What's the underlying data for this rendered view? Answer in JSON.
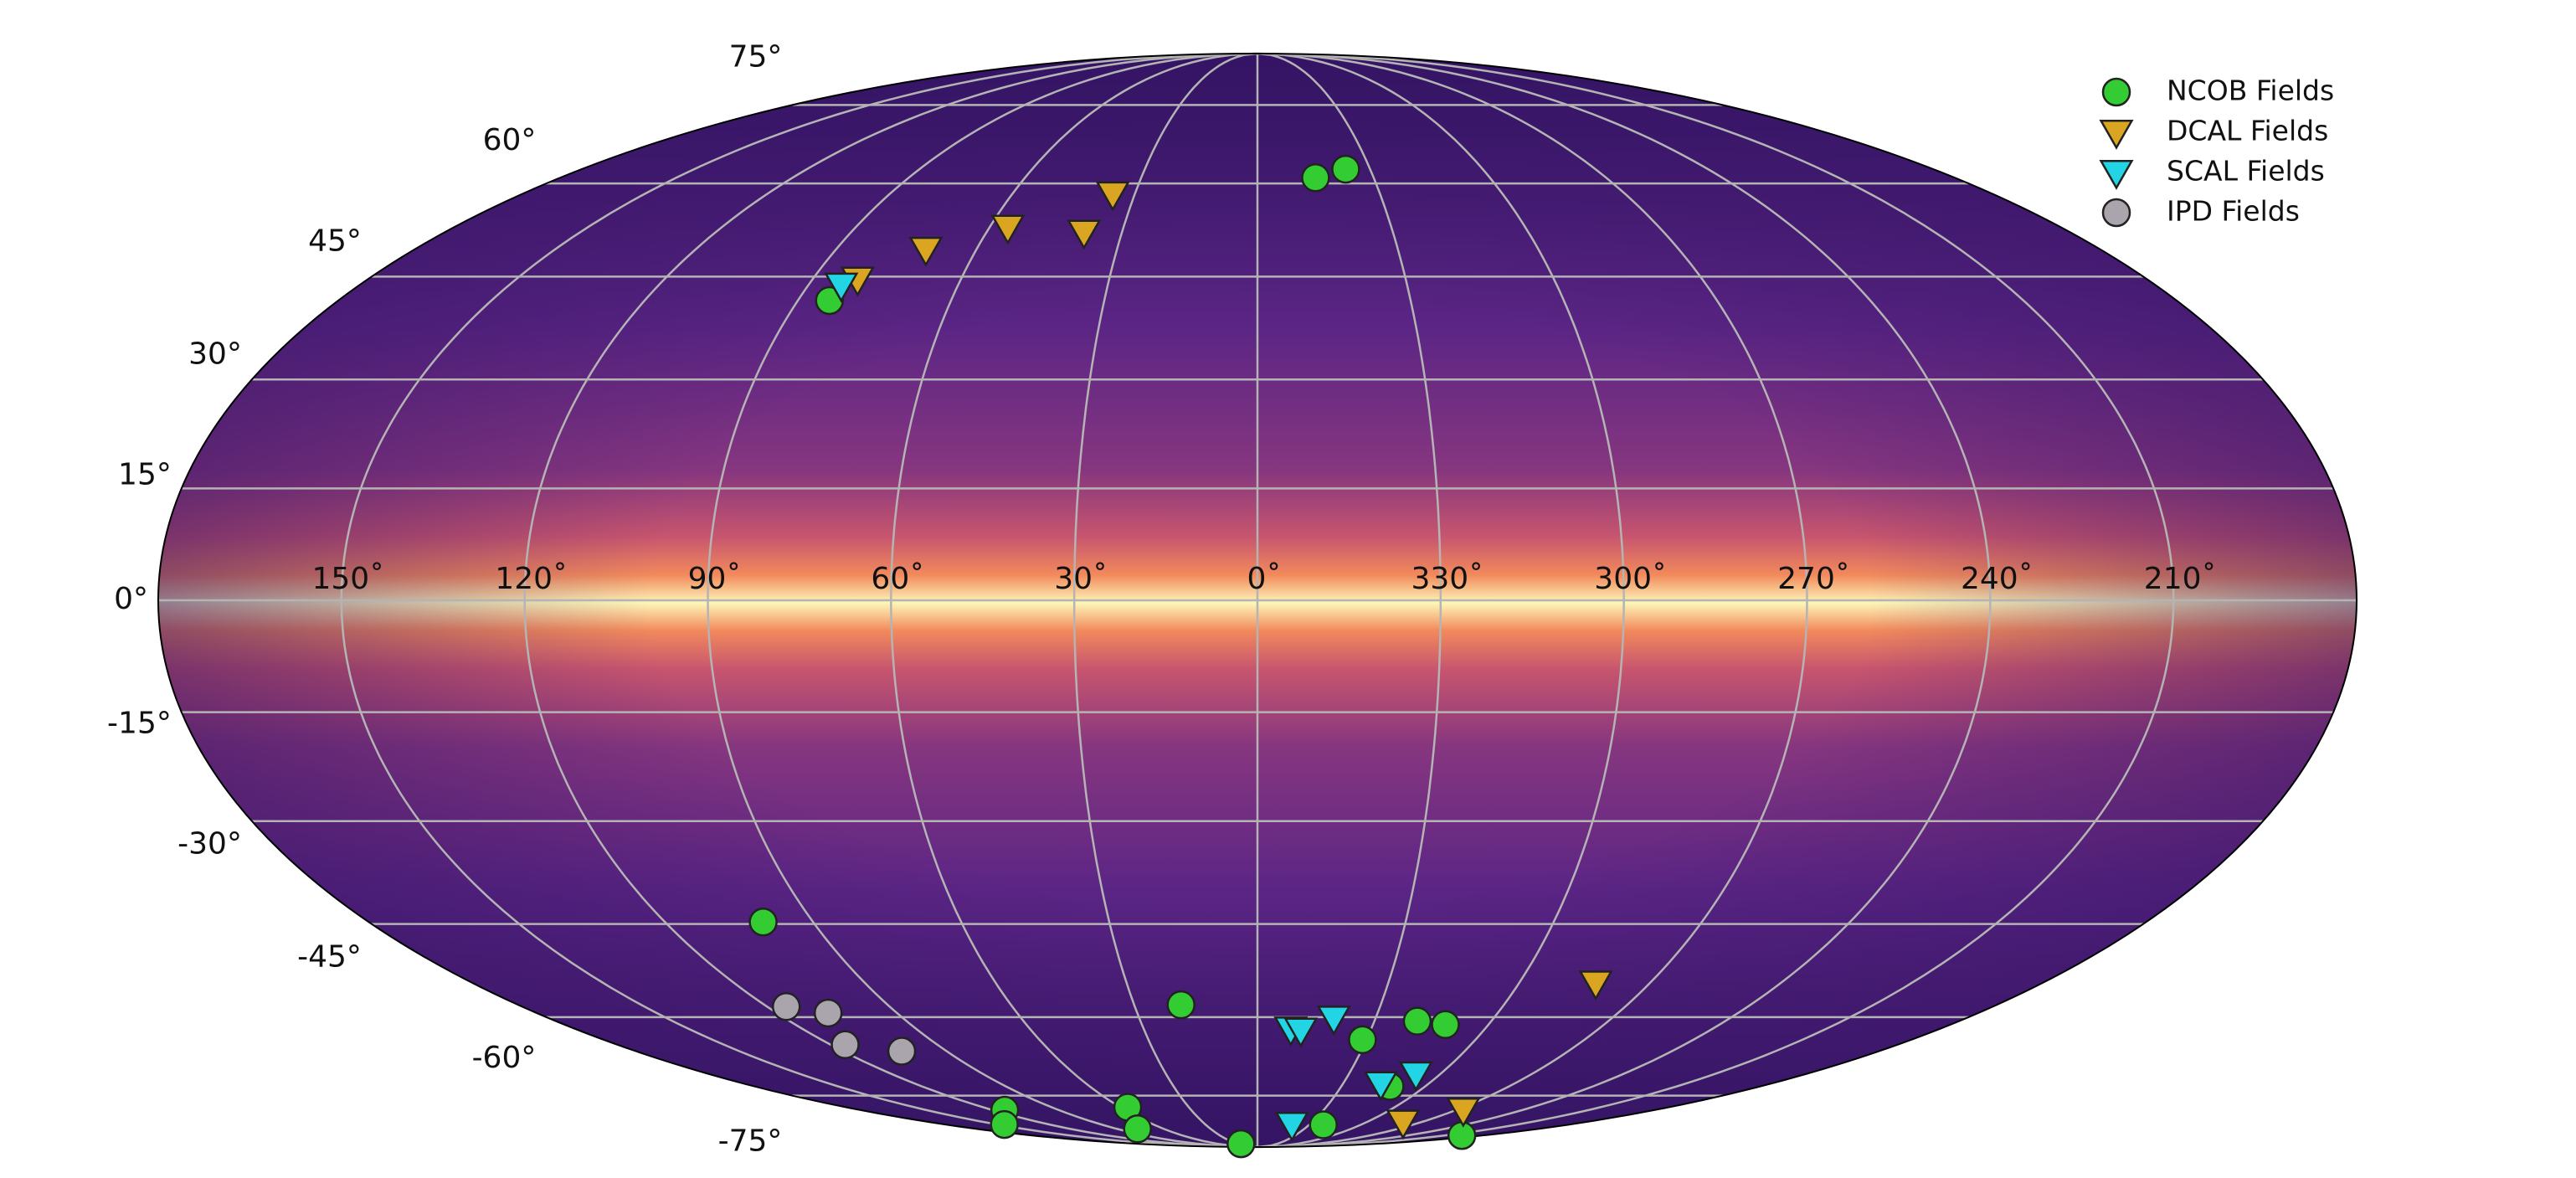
{
  "chart_data": {
    "type": "scatter",
    "projection": "mollweide",
    "grid": true,
    "legend": "upper right",
    "xlim": [
      180,
      -180
    ],
    "ylim": [
      -90,
      90
    ],
    "xticks": [
      {
        "value": 150,
        "label": "150˚"
      },
      {
        "value": 120,
        "label": "120˚"
      },
      {
        "value": 90,
        "label": "90˚"
      },
      {
        "value": 60,
        "label": "60˚"
      },
      {
        "value": 30,
        "label": "30˚"
      },
      {
        "value": 0,
        "label": "0˚"
      },
      {
        "value": 330,
        "label": "330˚"
      },
      {
        "value": 300,
        "label": "300˚"
      },
      {
        "value": 270,
        "label": "270˚"
      },
      {
        "value": 240,
        "label": "240˚"
      },
      {
        "value": 210,
        "label": "210˚"
      }
    ],
    "yticks": [
      {
        "value": 75,
        "label": "75°"
      },
      {
        "value": 60,
        "label": "60°"
      },
      {
        "value": 45,
        "label": "45°"
      },
      {
        "value": 30,
        "label": "30°"
      },
      {
        "value": 15,
        "label": "15°"
      },
      {
        "value": 0,
        "label": "0°"
      },
      {
        "value": -15,
        "label": "-15°"
      },
      {
        "value": -30,
        "label": "-30°"
      },
      {
        "value": -45,
        "label": "-45°"
      },
      {
        "value": -60,
        "label": "-60°"
      },
      {
        "value": -75,
        "label": "-75°"
      }
    ],
    "series": [
      {
        "name": "NCOB Fields",
        "color": "#33cc33",
        "marker": "circle",
        "x": [
          345.0,
          336.5,
          83.8,
          100.1,
          18.6,
          331.1,
          319.0,
          311.2,
          312.6,
          114.7,
          145.9,
          56.7,
          76.8,
          24.8,
          321.7,
          196.0
        ],
        "values": [
          61.0,
          62.5,
          41.4,
          -44.7,
          -57.9,
          -64.0,
          -60.7,
          -61.3,
          -73.0,
          -78.3,
          -81.9,
          -77.6,
          -83.1,
          -88.1,
          -82.0,
          -85.1
        ]
      },
      {
        "name": "DCAL Fields",
        "color": "#daa520",
        "marker": "triangle-down",
        "x": [
          35.4,
          38.4,
          55.9,
          70.8,
          80.9,
          282.4,
          266.6,
          279.9
        ],
        "values": [
          58.2,
          51.9,
          52.7,
          49.2,
          44.6,
          -54.3,
          -78.3,
          -81.3
        ]
      },
      {
        "name": "SCAL Fields",
        "color": "#22d4e4",
        "marker": "triangle-down",
        "x": [
          83.4,
          351.2,
          348.5,
          340.6,
          316.7,
          308.0,
          340.1
        ],
        "values": [
          43.7,
          -62.1,
          -62.3,
          -60.2,
          -72.5,
          -70.5,
          -81.9
        ]
      },
      {
        "name": "IPD Fields",
        "color": "#aaa4ad",
        "marker": "circle",
        "x": [
          115.3,
          107.2,
          115.9,
          103.0
        ],
        "values": [
          -58.2,
          -59.3,
          -64.9,
          -66.1
        ]
      }
    ]
  }
}
